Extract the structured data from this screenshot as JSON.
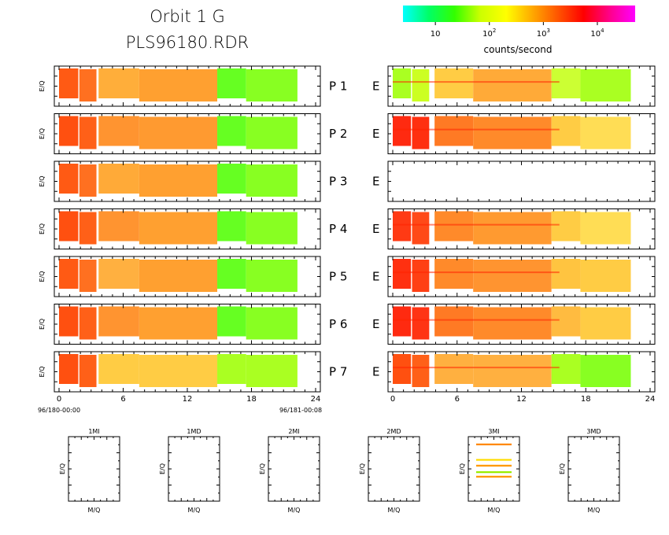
{
  "header": {
    "title": "Orbit 1 G",
    "subtitle": "PLS96180.RDR"
  },
  "colorbar": {
    "label": "counts/second",
    "colors": [
      "#00ffff",
      "#00ff66",
      "#33ff00",
      "#ccff00",
      "#ffff00",
      "#ffaa00",
      "#ff5500",
      "#ff0000",
      "#ff0088",
      "#ff00ff"
    ],
    "log_range": [
      0.4,
      4.7
    ],
    "ticks": [
      {
        "base": "10",
        "exp": ""
      },
      {
        "base": "10",
        "exp": "2"
      },
      {
        "base": "10",
        "exp": "3"
      },
      {
        "base": "10",
        "exp": "4"
      }
    ]
  },
  "chart_data": [
    {
      "type": "heatmap",
      "description_side": "P",
      "ylabel": "E/Q",
      "xlim": [
        0,
        24
      ],
      "x_ticks": [
        "0",
        "6",
        "12",
        "18",
        "24"
      ],
      "x_start_label": "96/180-00:00",
      "x_end_label": "96/181-00:08",
      "panels": [
        {
          "label": "P  1",
          "segments": [
            [
              0,
              1.8,
              "#ff5a14"
            ],
            [
              1.9,
              3.5,
              "#ff7020"
            ],
            [
              3.7,
              7.5,
              "#ffae3a"
            ],
            [
              7.5,
              14.8,
              "#ffa030"
            ],
            [
              14.8,
              17.5,
              "#66ff22"
            ],
            [
              17.5,
              22.3,
              "#88ff22"
            ]
          ]
        },
        {
          "label": "P  2",
          "segments": [
            [
              0,
              1.8,
              "#ff5010"
            ],
            [
              1.9,
              3.5,
              "#ff6018"
            ],
            [
              3.7,
              7.5,
              "#ff9430"
            ],
            [
              7.5,
              14.8,
              "#ff9a30"
            ],
            [
              14.8,
              17.5,
              "#66ff22"
            ],
            [
              17.5,
              22.3,
              "#88ff22"
            ]
          ]
        },
        {
          "label": "P  3",
          "segments": [
            [
              0,
              1.8,
              "#ff5a14"
            ],
            [
              1.9,
              3.5,
              "#ff7020"
            ],
            [
              3.7,
              7.5,
              "#ffaa38"
            ],
            [
              7.5,
              14.8,
              "#ffa030"
            ],
            [
              14.8,
              17.5,
              "#66ff22"
            ],
            [
              17.5,
              22.3,
              "#88ff22"
            ]
          ]
        },
        {
          "label": "P  4",
          "segments": [
            [
              0,
              1.8,
              "#ff5010"
            ],
            [
              1.9,
              3.5,
              "#ff6018"
            ],
            [
              3.7,
              7.5,
              "#ff9430"
            ],
            [
              7.5,
              14.8,
              "#ffa030"
            ],
            [
              14.8,
              17.5,
              "#66ff22"
            ],
            [
              17.5,
              22.3,
              "#88ff22"
            ]
          ]
        },
        {
          "label": "P  5",
          "segments": [
            [
              0,
              1.8,
              "#ff5a14"
            ],
            [
              1.9,
              3.5,
              "#ff7020"
            ],
            [
              3.7,
              7.5,
              "#ffb040"
            ],
            [
              7.5,
              14.8,
              "#ffa030"
            ],
            [
              14.8,
              17.5,
              "#66ff22"
            ],
            [
              17.5,
              22.3,
              "#88ff22"
            ]
          ]
        },
        {
          "label": "P  6",
          "segments": [
            [
              0,
              1.8,
              "#ff5010"
            ],
            [
              1.9,
              3.5,
              "#ff6018"
            ],
            [
              3.7,
              7.5,
              "#ff9430"
            ],
            [
              7.5,
              14.8,
              "#ffa030"
            ],
            [
              14.8,
              17.5,
              "#66ff22"
            ],
            [
              17.5,
              22.3,
              "#88ff22"
            ]
          ]
        },
        {
          "label": "P  7",
          "segments": [
            [
              0,
              1.8,
              "#ff5010"
            ],
            [
              1.9,
              3.5,
              "#ff6018"
            ],
            [
              3.7,
              7.5,
              "#ffcc44"
            ],
            [
              7.5,
              14.8,
              "#ffcc44"
            ],
            [
              14.8,
              17.5,
              "#aaff22"
            ],
            [
              17.5,
              22.3,
              "#aaff22"
            ]
          ]
        }
      ]
    },
    {
      "type": "heatmap",
      "description_side": "E",
      "xlim": [
        0,
        24
      ],
      "x_ticks": [
        "0",
        "6",
        "12",
        "18",
        "24"
      ],
      "panels": [
        {
          "label": "E",
          "segments": [
            [
              0,
              1.7,
              "#aaff22"
            ],
            [
              1.8,
              3.4,
              "#ccff22"
            ],
            [
              3.9,
              7.5,
              "#ffcc44"
            ],
            [
              7.5,
              14.8,
              "#ffaa38"
            ],
            [
              14.8,
              17.5,
              "#ccff33"
            ],
            [
              17.5,
              22.2,
              "#aaff22"
            ]
          ]
        },
        {
          "label": "E",
          "segments": [
            [
              0,
              1.7,
              "#ff2a10"
            ],
            [
              1.8,
              3.4,
              "#ff3010"
            ],
            [
              3.9,
              7.5,
              "#ff7a24"
            ],
            [
              7.5,
              14.8,
              "#ff8a2a"
            ],
            [
              14.8,
              17.5,
              "#ffcc44"
            ],
            [
              17.5,
              22.2,
              "#ffdd55"
            ]
          ]
        },
        {
          "label": "E",
          "segments": []
        },
        {
          "label": "E",
          "segments": [
            [
              0,
              1.7,
              "#ff3a14"
            ],
            [
              1.8,
              3.4,
              "#ff4a18"
            ],
            [
              3.9,
              7.5,
              "#ff8a2a"
            ],
            [
              7.5,
              14.8,
              "#ff9a30"
            ],
            [
              14.8,
              17.5,
              "#ffcc44"
            ],
            [
              17.5,
              22.2,
              "#ffdd55"
            ]
          ]
        },
        {
          "label": "E",
          "segments": [
            [
              0,
              1.7,
              "#ff3010"
            ],
            [
              1.8,
              3.4,
              "#ff4014"
            ],
            [
              3.9,
              7.5,
              "#ff8a2a"
            ],
            [
              7.5,
              14.8,
              "#ff9430"
            ],
            [
              14.8,
              17.5,
              "#ffc440"
            ],
            [
              17.5,
              22.2,
              "#ffcc44"
            ]
          ]
        },
        {
          "label": "E",
          "segments": [
            [
              0,
              1.7,
              "#ff2a10"
            ],
            [
              1.8,
              3.4,
              "#ff3414"
            ],
            [
              3.9,
              7.5,
              "#ff7a24"
            ],
            [
              7.5,
              14.8,
              "#ff8a2a"
            ],
            [
              14.8,
              17.5,
              "#ffbb40"
            ],
            [
              17.5,
              22.2,
              "#ffcc44"
            ]
          ]
        },
        {
          "label": "E",
          "segments": [
            [
              0,
              1.7,
              "#ff5010"
            ],
            [
              1.8,
              3.4,
              "#ff6018"
            ],
            [
              3.9,
              7.5,
              "#ffb040"
            ],
            [
              7.5,
              14.8,
              "#ffb040"
            ],
            [
              14.8,
              17.5,
              "#aaff22"
            ],
            [
              17.5,
              22.2,
              "#88ff22"
            ]
          ]
        }
      ]
    },
    {
      "type": "scatter",
      "description_side": "mass",
      "xlabel": "M/Q",
      "ylabel": "E/Q",
      "panels": [
        {
          "title": "1MI",
          "lines": []
        },
        {
          "title": "1MD",
          "lines": []
        },
        {
          "title": "2MI",
          "lines": []
        },
        {
          "title": "2MD",
          "lines": []
        },
        {
          "title": "3MI",
          "lines": [
            {
              "y": 0.88,
              "color": "#ff8800"
            },
            {
              "y": 0.64,
              "color": "#ffdd00"
            },
            {
              "y": 0.55,
              "color": "#ff9900"
            },
            {
              "y": 0.45,
              "color": "#99ee00"
            },
            {
              "y": 0.38,
              "color": "#ff9900"
            }
          ]
        },
        {
          "title": "3MD",
          "lines": []
        }
      ]
    }
  ]
}
